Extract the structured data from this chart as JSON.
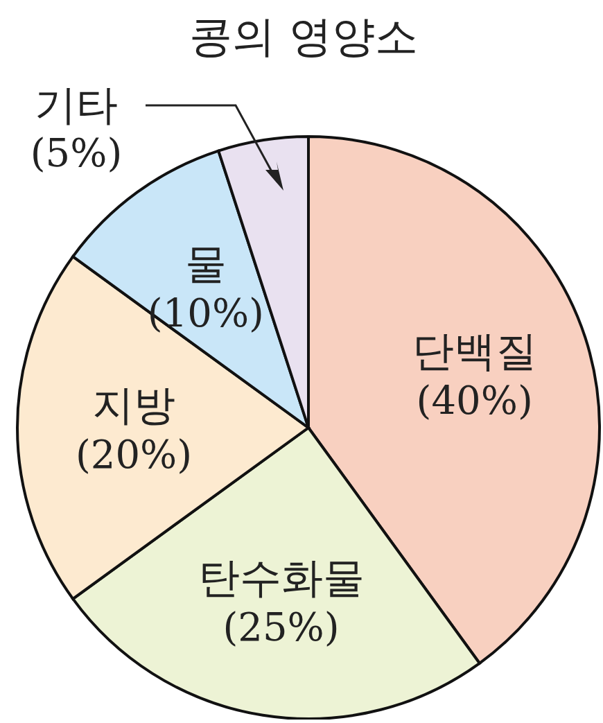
{
  "chart_data": {
    "type": "pie",
    "title": "콩의 영양소",
    "categories": [
      "단백질",
      "탄수화물",
      "지방",
      "물",
      "기타"
    ],
    "values": [
      40,
      25,
      20,
      10,
      5
    ],
    "value_labels": [
      "(40%)",
      "(25%)",
      "(20%)",
      "(10%)",
      "(5%)"
    ],
    "colors": [
      "#f8d0c0",
      "#edf3d5",
      "#fdead0",
      "#c9e6f8",
      "#e9e1f0"
    ]
  }
}
